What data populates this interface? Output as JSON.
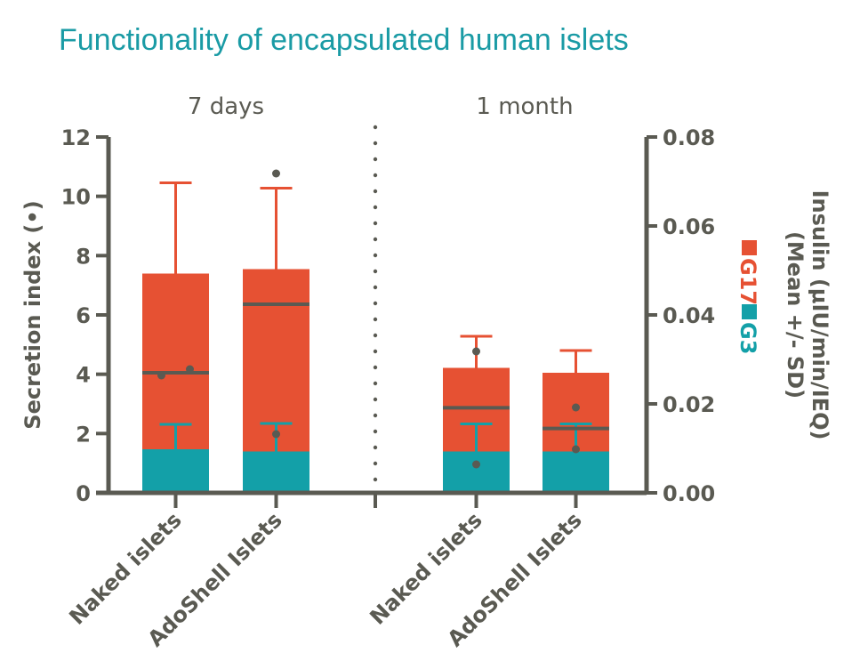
{
  "colors": {
    "title": "#1a9ba5",
    "axis": "#5a5a52",
    "g17": "#e65133",
    "g3": "#13a0a8",
    "marker": "#5a5a52"
  },
  "chart_data": {
    "type": "bar",
    "subtype": "stacked bar with error bars and scatter overlay (dual axis)",
    "title": "Functionality of encapsulated human islets",
    "groups": [
      "7 days",
      "1 month"
    ],
    "categories": [
      "Naked islets",
      "AdoShell Islets",
      "Naked islets",
      "AdoShell Islets"
    ],
    "category_groups": [
      "7 days",
      "7 days",
      "1 month",
      "1 month"
    ],
    "left_axis": {
      "label": "Secretion index (•)",
      "ylim": [
        0,
        12
      ],
      "ticks": [
        "0",
        "2",
        "4",
        "6",
        "8",
        "10",
        "12"
      ],
      "tick_values": [
        0,
        2,
        4,
        6,
        8,
        10,
        12
      ]
    },
    "right_axis": {
      "label_line1": "Insulin (μIU/min/IEQ)",
      "label_line2": "(Mean +/- SD)",
      "ylim": [
        0,
        0.08
      ],
      "ticks": [
        "0.00",
        "0.02",
        "0.04",
        "0.06",
        "0.08"
      ],
      "tick_values": [
        0,
        0.02,
        0.04,
        0.06,
        0.08
      ]
    },
    "legend": {
      "position": "right",
      "entries": [
        {
          "name": "G17",
          "color": "#e65133"
        },
        {
          "name": "G3",
          "color": "#13a0a8"
        }
      ]
    },
    "series": [
      {
        "name": "G17",
        "axis": "right",
        "values": [
          0.0493,
          0.0503,
          0.0281,
          0.027
        ],
        "sd_upper": [
          0.0697,
          0.0685,
          0.0352,
          0.032
        ]
      },
      {
        "name": "G3",
        "axis": "right",
        "values": [
          0.0098,
          0.0093,
          0.0093,
          0.0093
        ],
        "sd_upper": [
          0.0154,
          0.0156,
          0.0155,
          0.0155
        ]
      }
    ],
    "secretion_index": {
      "axis": "left",
      "points": [
        [
          3.96,
          4.17
        ],
        [
          10.77,
          1.98
        ],
        [
          4.77,
          0.96
        ],
        [
          2.88,
          1.47
        ]
      ],
      "mean": [
        4.05,
        6.36,
        2.87,
        2.17
      ]
    },
    "grid": false
  }
}
